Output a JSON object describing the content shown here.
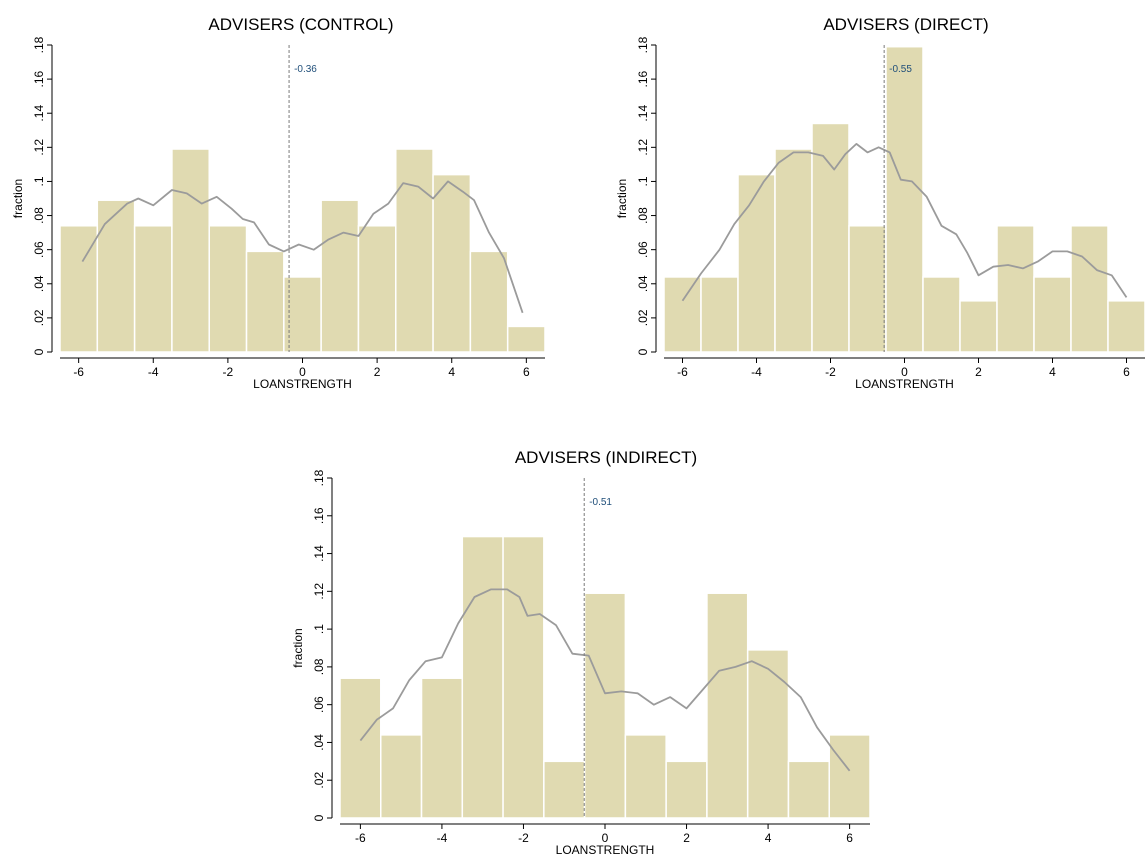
{
  "colors": {
    "bar_fill": "#e0dab1",
    "bar_stroke": "#ffffff",
    "curve": "#9b9b9b",
    "mean_line": "#7a7a7a",
    "mean_label": "#1f4e79",
    "axis": "#000000"
  },
  "chart_data": [
    {
      "type": "bar",
      "title": "ADVISERS (CONTROL)",
      "xlabel": "LOANSTRENGTH",
      "ylabel": "fraction",
      "xlim": [
        -6.5,
        6.5
      ],
      "ylim": [
        0,
        0.18
      ],
      "xticks": [
        -6,
        -4,
        -2,
        0,
        2,
        4,
        6
      ],
      "yticks": [
        0,
        0.02,
        0.04,
        0.06,
        0.08,
        0.1,
        0.12,
        0.14,
        0.16,
        0.18
      ],
      "ytick_labels": [
        "0",
        ".02",
        ".04",
        ".06",
        ".08",
        ".1",
        ".12",
        ".14",
        ".16",
        ".18"
      ],
      "bin_left": -6.5,
      "bin_width": 1,
      "values": [
        0.074,
        0.089,
        0.074,
        0.119,
        0.074,
        0.059,
        0.044,
        0.089,
        0.074,
        0.119,
        0.104,
        0.059,
        0.015
      ],
      "mean_line": {
        "x": -0.36,
        "label": "-0.36"
      },
      "density_curve": {
        "x": [
          -5.9,
          -5.3,
          -4.7,
          -4.4,
          -4.0,
          -3.5,
          -3.1,
          -2.7,
          -2.3,
          -1.9,
          -1.6,
          -1.3,
          -0.9,
          -0.5,
          -0.1,
          0.3,
          0.7,
          1.1,
          1.5,
          1.9,
          2.3,
          2.7,
          3.1,
          3.5,
          3.9,
          4.3,
          4.6,
          5.0,
          5.4,
          5.9
        ],
        "y": [
          0.053,
          0.075,
          0.087,
          0.09,
          0.086,
          0.095,
          0.093,
          0.087,
          0.091,
          0.084,
          0.078,
          0.076,
          0.063,
          0.059,
          0.063,
          0.06,
          0.066,
          0.07,
          0.068,
          0.081,
          0.087,
          0.099,
          0.097,
          0.09,
          0.1,
          0.094,
          0.089,
          0.07,
          0.055,
          0.023
        ]
      }
    },
    {
      "type": "bar",
      "title": "ADVISERS (DIRECT)",
      "xlabel": "LOANSTRENGTH",
      "ylabel": "fraction",
      "xlim": [
        -6.5,
        6.5
      ],
      "ylim": [
        0,
        0.18
      ],
      "xticks": [
        -6,
        -4,
        -2,
        0,
        2,
        4,
        6
      ],
      "yticks": [
        0,
        0.02,
        0.04,
        0.06,
        0.08,
        0.1,
        0.12,
        0.14,
        0.16,
        0.18
      ],
      "ytick_labels": [
        "0",
        ".02",
        ".04",
        ".06",
        ".08",
        ".1",
        ".12",
        ".14",
        ".16",
        ".18"
      ],
      "bin_left": -6.5,
      "bin_width": 1,
      "values": [
        0.044,
        0.044,
        0.104,
        0.119,
        0.134,
        0.074,
        0.179,
        0.044,
        0.03,
        0.074,
        0.044,
        0.074,
        0.03
      ],
      "mean_line": {
        "x": -0.55,
        "label": "-0.55"
      },
      "density_curve": {
        "x": [
          -6.0,
          -5.5,
          -5.0,
          -4.6,
          -4.2,
          -3.8,
          -3.4,
          -3.0,
          -2.6,
          -2.2,
          -1.9,
          -1.6,
          -1.3,
          -1.0,
          -0.7,
          -0.4,
          -0.1,
          0.2,
          0.6,
          1.0,
          1.4,
          1.7,
          2.0,
          2.4,
          2.8,
          3.2,
          3.6,
          4.0,
          4.4,
          4.8,
          5.2,
          5.6,
          6.0
        ],
        "y": [
          0.03,
          0.046,
          0.06,
          0.075,
          0.086,
          0.1,
          0.111,
          0.117,
          0.117,
          0.115,
          0.107,
          0.116,
          0.122,
          0.117,
          0.12,
          0.117,
          0.101,
          0.1,
          0.091,
          0.074,
          0.069,
          0.058,
          0.045,
          0.05,
          0.051,
          0.049,
          0.053,
          0.059,
          0.059,
          0.056,
          0.048,
          0.045,
          0.032
        ]
      }
    },
    {
      "type": "bar",
      "title": "ADVISERS (INDIRECT)",
      "xlabel": "LOANSTRENGTH",
      "ylabel": "fraction",
      "xlim": [
        -6.5,
        6.5
      ],
      "ylim": [
        0,
        0.18
      ],
      "xticks": [
        -6,
        -4,
        -2,
        0,
        2,
        4,
        6
      ],
      "yticks": [
        0,
        0.02,
        0.04,
        0.06,
        0.08,
        0.1,
        0.12,
        0.14,
        0.16,
        0.18
      ],
      "ytick_labels": [
        "0",
        ".02",
        ".04",
        ".06",
        ".08",
        ".1",
        ".12",
        ".14",
        ".16",
        ".18"
      ],
      "bin_left": -6.5,
      "bin_width": 1,
      "values": [
        0.074,
        0.044,
        0.074,
        0.149,
        0.149,
        0.03,
        0.119,
        0.044,
        0.03,
        0.119,
        0.089,
        0.03,
        0.044
      ],
      "mean_line": {
        "x": -0.51,
        "label": "-0.51"
      },
      "density_curve": {
        "x": [
          -6.0,
          -5.6,
          -5.2,
          -4.8,
          -4.4,
          -4.0,
          -3.6,
          -3.2,
          -2.8,
          -2.4,
          -2.1,
          -1.9,
          -1.6,
          -1.2,
          -0.8,
          -0.4,
          0.0,
          0.4,
          0.8,
          1.2,
          1.6,
          2.0,
          2.4,
          2.8,
          3.2,
          3.6,
          4.0,
          4.4,
          4.8,
          5.2,
          5.6,
          6.0
        ],
        "y": [
          0.041,
          0.052,
          0.058,
          0.073,
          0.083,
          0.085,
          0.103,
          0.117,
          0.121,
          0.121,
          0.117,
          0.107,
          0.108,
          0.102,
          0.087,
          0.086,
          0.066,
          0.067,
          0.066,
          0.06,
          0.064,
          0.058,
          0.068,
          0.078,
          0.08,
          0.083,
          0.079,
          0.072,
          0.064,
          0.048,
          0.036,
          0.025
        ]
      }
    }
  ]
}
